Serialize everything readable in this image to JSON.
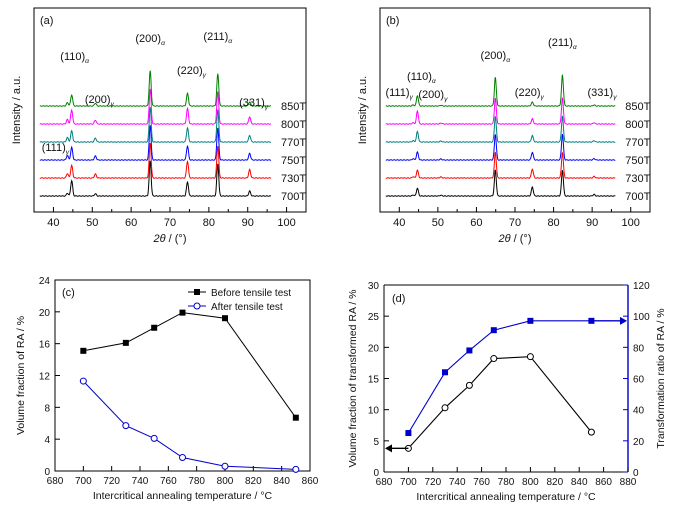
{
  "chart_data": [
    {
      "panel": "(a)",
      "type": "line",
      "xlabel": "2θ / (°)",
      "ylabel": "Intensity / a.u.",
      "xlim": [
        35,
        105
      ],
      "xticks": [
        40,
        50,
        60,
        70,
        80,
        90,
        100
      ],
      "series": [
        {
          "name": "700T",
          "color": "#000000"
        },
        {
          "name": "730T",
          "color": "#ff0000"
        },
        {
          "name": "750T",
          "color": "#0000ff"
        },
        {
          "name": "770T",
          "color": "#008080"
        },
        {
          "name": "800T",
          "color": "#ff00ff"
        },
        {
          "name": "850T",
          "color": "#008000"
        }
      ],
      "peaks": [
        {
          "label": "(111)",
          "sub": "γ",
          "x": 43.6,
          "heights": [
            0.1,
            0.16,
            0.16,
            0.16,
            0.16,
            0.12
          ]
        },
        {
          "label": "(110)",
          "sub": "α",
          "x": 44.7,
          "heights": [
            0.55,
            0.45,
            0.45,
            0.4,
            0.5,
            0.4
          ]
        },
        {
          "label": "(200)",
          "sub": "γ",
          "x": 50.8,
          "heights": [
            0.08,
            0.14,
            0.14,
            0.14,
            0.14,
            0.1
          ]
        },
        {
          "label": "(200)",
          "sub": "α",
          "x": 64.9,
          "heights": [
            1.25,
            1.25,
            1.25,
            1.25,
            1.25,
            1.25
          ]
        },
        {
          "label": "(220)",
          "sub": "γ",
          "x": 74.5,
          "heights": [
            0.5,
            0.6,
            0.5,
            0.5,
            0.55,
            0.45
          ]
        },
        {
          "label": "(211)",
          "sub": "α",
          "x": 82.3,
          "heights": [
            1.15,
            1.15,
            1.15,
            1.15,
            1.15,
            1.15
          ]
        },
        {
          "label": "(331)",
          "sub": "γ",
          "x": 90.5,
          "heights": [
            0.18,
            0.3,
            0.24,
            0.24,
            0.26,
            0.15
          ]
        }
      ]
    },
    {
      "panel": "(b)",
      "type": "line",
      "xlabel": "2θ / (°)",
      "ylabel": "Intensity / a.u.",
      "xlim": [
        35,
        105
      ],
      "xticks": [
        40,
        50,
        60,
        70,
        80,
        90,
        100
      ],
      "series": [
        {
          "name": "700T",
          "color": "#000000"
        },
        {
          "name": "730T",
          "color": "#ff0000"
        },
        {
          "name": "750T",
          "color": "#0000ff"
        },
        {
          "name": "770T",
          "color": "#008080"
        },
        {
          "name": "800T",
          "color": "#ff00ff"
        },
        {
          "name": "850T",
          "color": "#008000"
        }
      ],
      "peaks": [
        {
          "label": "(111)",
          "sub": "γ",
          "x": 43.6,
          "heights": [
            0.04,
            0.05,
            0.05,
            0.05,
            0.05,
            0.04
          ]
        },
        {
          "label": "(110)",
          "sub": "α",
          "x": 44.7,
          "heights": [
            0.3,
            0.3,
            0.3,
            0.4,
            0.5,
            0.4
          ]
        },
        {
          "label": "(200)",
          "sub": "γ",
          "x": 50.8,
          "heights": [
            0.03,
            0.04,
            0.04,
            0.04,
            0.04,
            0.03
          ]
        },
        {
          "label": "(200)",
          "sub": "α",
          "x": 64.9,
          "heights": [
            1.0,
            1.0,
            1.0,
            1.0,
            1.0,
            1.1
          ]
        },
        {
          "label": "(220)",
          "sub": "γ",
          "x": 74.5,
          "heights": [
            0.35,
            0.35,
            0.3,
            0.25,
            0.2,
            0.15
          ]
        },
        {
          "label": "(211)",
          "sub": "α",
          "x": 82.3,
          "heights": [
            1.0,
            1.0,
            1.0,
            1.0,
            1.0,
            1.2
          ]
        },
        {
          "label": "(331)",
          "sub": "γ",
          "x": 90.5,
          "heights": [
            0.06,
            0.06,
            0.05,
            0.05,
            0.05,
            0.04
          ]
        }
      ]
    },
    {
      "panel": "(c)",
      "type": "line",
      "xlabel": "Intercritical annealing temperature / °C",
      "ylabel": "Volume fraction of RA / %",
      "xlim": [
        680,
        860
      ],
      "ylim": [
        0,
        24
      ],
      "xticks": [
        680,
        700,
        720,
        740,
        760,
        780,
        800,
        820,
        840,
        860
      ],
      "yticks": [
        0,
        4,
        8,
        12,
        16,
        20,
        24
      ],
      "legend": "top-right",
      "series": [
        {
          "name": "Before tensile test",
          "color": "#000000",
          "marker": "filled-square",
          "x": [
            700,
            730,
            750,
            770,
            800,
            850
          ],
          "y": [
            15.1,
            16.1,
            18.0,
            19.9,
            19.2,
            6.7
          ]
        },
        {
          "name": "After tensile test",
          "color": "#0000cc",
          "marker": "open-circle",
          "x": [
            700,
            730,
            750,
            770,
            800,
            850
          ],
          "y": [
            11.3,
            5.7,
            4.1,
            1.7,
            0.6,
            0.2
          ]
        }
      ]
    },
    {
      "panel": "(d)",
      "type": "line",
      "xlabel": "Intercritical annealing temperature / °C",
      "ylabel": "Volume fraction of transformed RA / %",
      "y2label": "Transformation ratio of RA / %",
      "xlim": [
        680,
        880
      ],
      "ylim": [
        0,
        30
      ],
      "y2lim": [
        0,
        120
      ],
      "xticks": [
        680,
        700,
        720,
        740,
        760,
        780,
        800,
        820,
        840,
        860,
        880
      ],
      "yticks": [
        0,
        5,
        10,
        15,
        20,
        25,
        30
      ],
      "y2ticks": [
        0,
        20,
        40,
        60,
        80,
        100,
        120
      ],
      "series": [
        {
          "axis": "left",
          "color": "#000000",
          "marker": "open-circle",
          "x": [
            700,
            730,
            750,
            770,
            800,
            850
          ],
          "y": [
            3.8,
            10.3,
            13.9,
            18.2,
            18.5,
            6.4
          ]
        },
        {
          "axis": "right",
          "color": "#0000cc",
          "marker": "filled-square",
          "x": [
            700,
            730,
            750,
            770,
            800,
            850
          ],
          "y": [
            25,
            64,
            78,
            91,
            97,
            97
          ]
        }
      ]
    }
  ]
}
